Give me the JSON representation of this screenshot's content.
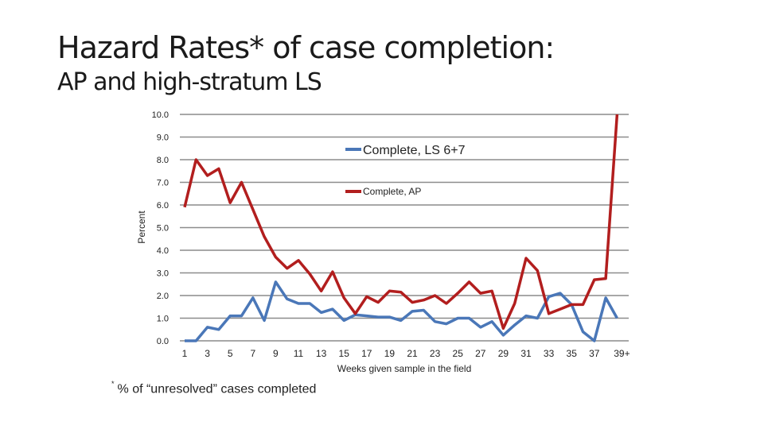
{
  "title": "Hazard Rates* of case completion:",
  "subtitle": "AP and high-stratum LS",
  "footnote": {
    "marker": "*",
    "text": "% of “unresolved” cases completed"
  },
  "colors": {
    "ls": "#4a77b8",
    "ap": "#b21e1e",
    "grid": "#8c8c8c"
  },
  "chart_data": {
    "type": "line",
    "xlabel": "Weeks given sample in the field",
    "ylabel": "Percent",
    "ylim": [
      0,
      10
    ],
    "yticks": [
      "0.0",
      "1.0",
      "2.0",
      "3.0",
      "4.0",
      "5.0",
      "6.0",
      "7.0",
      "8.0",
      "9.0",
      "10.0"
    ],
    "x_tick_labels": [
      "1",
      "3",
      "5",
      "7",
      "9",
      "11",
      "13",
      "15",
      "17",
      "19",
      "21",
      "23",
      "25",
      "27",
      "29",
      "31",
      "33",
      "35",
      "37",
      "39+"
    ],
    "grid": true,
    "legend_position": "top-right",
    "series": [
      {
        "name": "Complete, LS 6+7",
        "values": [
          0.0,
          0.0,
          0.6,
          0.5,
          1.1,
          1.1,
          1.9,
          0.9,
          2.6,
          1.85,
          1.65,
          1.65,
          1.25,
          1.4,
          0.9,
          1.15,
          1.1,
          1.05,
          1.05,
          0.9,
          1.3,
          1.35,
          0.85,
          0.75,
          1.0,
          1.0,
          0.6,
          0.85,
          0.25,
          0.7,
          1.1,
          1.0,
          1.95,
          2.1,
          1.6,
          0.4,
          0.0,
          1.9,
          1.0
        ]
      },
      {
        "name": "Complete, AP",
        "values": [
          5.9,
          8.0,
          7.3,
          7.6,
          6.1,
          7.0,
          5.8,
          4.6,
          3.7,
          3.2,
          3.55,
          2.95,
          2.2,
          3.05,
          1.9,
          1.2,
          1.95,
          1.7,
          2.2,
          2.15,
          1.7,
          1.8,
          2.0,
          1.65,
          2.1,
          2.6,
          2.1,
          2.2,
          0.55,
          1.65,
          3.65,
          3.1,
          1.2,
          1.4,
          1.6,
          1.6,
          2.7,
          2.75,
          10.0
        ]
      }
    ]
  }
}
